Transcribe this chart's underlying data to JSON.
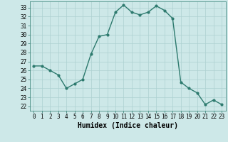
{
  "x": [
    0,
    1,
    2,
    3,
    4,
    5,
    6,
    7,
    8,
    9,
    10,
    11,
    12,
    13,
    14,
    15,
    16,
    17,
    18,
    19,
    20,
    21,
    22,
    23
  ],
  "y": [
    26.5,
    26.5,
    26.0,
    25.5,
    24.0,
    24.5,
    25.0,
    27.8,
    29.8,
    30.0,
    32.5,
    33.3,
    32.5,
    32.2,
    32.5,
    33.2,
    32.7,
    31.8,
    24.7,
    24.0,
    23.5,
    22.2,
    22.7,
    22.2
  ],
  "line_color": "#2d7a6e",
  "marker": "o",
  "marker_size": 2.0,
  "xlabel": "Humidex (Indice chaleur)",
  "ylim": [
    21.5,
    33.7
  ],
  "xlim": [
    -0.5,
    23.5
  ],
  "yticks": [
    22,
    23,
    24,
    25,
    26,
    27,
    28,
    29,
    30,
    31,
    32,
    33
  ],
  "xticks": [
    0,
    1,
    2,
    3,
    4,
    5,
    6,
    7,
    8,
    9,
    10,
    11,
    12,
    13,
    14,
    15,
    16,
    17,
    18,
    19,
    20,
    21,
    22,
    23
  ],
  "background_color": "#cde8e8",
  "grid_color": "#add0d0",
  "tick_fontsize": 5.5,
  "xlabel_fontsize": 7.0,
  "line_width": 1.0
}
